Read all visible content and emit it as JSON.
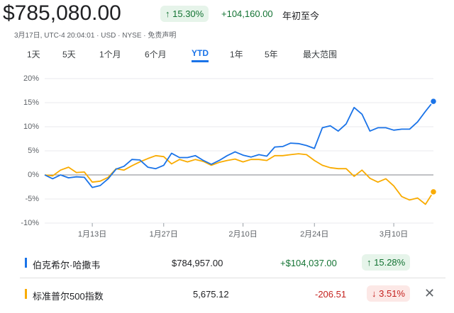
{
  "header": {
    "price": "$785,080.00",
    "change_pct": "15.30%",
    "change_abs": "+104,160.00",
    "period": "年初至今",
    "subline": "3月17日, UTC-4 20:04:01 · USD · NYSE · 免责声明"
  },
  "tabs": [
    "1天",
    "5天",
    "1个月",
    "6个月",
    "YTD",
    "1年",
    "5年",
    "最大范围"
  ],
  "active_tab": "YTD",
  "chart_data": {
    "type": "line",
    "x": [
      "1月2日",
      "1月3日",
      "1月6日",
      "1月7日",
      "1月8日",
      "1月10日",
      "1月13日",
      "1月14日",
      "1月15日",
      "1月16日",
      "1月17日",
      "1月21日",
      "1月22日",
      "1月23日",
      "1月24日",
      "1月27日",
      "1月28日",
      "1月29日",
      "1月30日",
      "1月31日",
      "2月3日",
      "2月4日",
      "2月5日",
      "2月6日",
      "2月7日",
      "2月10日",
      "2月11日",
      "2月12日",
      "2月13日",
      "2月14日",
      "2月18日",
      "2月19日",
      "2月20日",
      "2月21日",
      "2月24日",
      "2月25日",
      "2月26日",
      "2月27日",
      "2月28日",
      "3月3日",
      "3月4日",
      "3月5日",
      "3月6日",
      "3月7日",
      "3月10日",
      "3月11日",
      "3月12日",
      "3月13日",
      "3月14日",
      "3月17日"
    ],
    "xticks": [
      "1月13日",
      "1月27日",
      "2月10日",
      "2月24日",
      "3月10日"
    ],
    "ylim": [
      -10,
      20
    ],
    "yticks": [
      {
        "value": -10,
        "label": "-10%"
      },
      {
        "value": -5,
        "label": "-5%"
      },
      {
        "value": 0,
        "label": "0%"
      },
      {
        "value": 5,
        "label": "5%"
      },
      {
        "value": 10,
        "label": "10%"
      },
      {
        "value": 15,
        "label": "15%"
      },
      {
        "value": 20,
        "label": "20%"
      }
    ],
    "grid": true,
    "series": [
      {
        "name": "伯克希尔·哈撒韦",
        "color": "#1a73e8",
        "values": [
          0,
          -0.8,
          0,
          -0.6,
          -0.4,
          -0.5,
          -2.6,
          -2.2,
          -0.8,
          1.2,
          1.8,
          3.2,
          3.1,
          1.6,
          1.3,
          2,
          4.5,
          3.6,
          3.6,
          4,
          3,
          2.2,
          3,
          4,
          4.8,
          4.1,
          3.7,
          4.2,
          3.9,
          5.8,
          5.9,
          6.6,
          6.5,
          6.1,
          5.5,
          9.8,
          10.2,
          9.1,
          10.6,
          14,
          12.6,
          9.1,
          9.8,
          9.8,
          9.3,
          9.5,
          9.5,
          11,
          13.2,
          15.28
        ]
      },
      {
        "name": "标准普尔500指数",
        "color": "#f9ab00",
        "values": [
          0,
          -0.2,
          1,
          1.6,
          0.5,
          0.6,
          -1.5,
          -1.3,
          -0.5,
          1.3,
          1,
          1.9,
          2.7,
          3.4,
          4,
          3.8,
          2.3,
          3.2,
          2.7,
          3.2,
          2.8,
          2,
          2.6,
          3,
          3.3,
          2.7,
          3.2,
          3.2,
          3,
          4,
          4,
          4.2,
          4.4,
          4.2,
          3,
          2,
          1.5,
          1.3,
          1.3,
          -0.3,
          1,
          -0.7,
          -1.5,
          -0.8,
          -2.3,
          -4.5,
          -5.2,
          -4.8,
          -6.1,
          -3.51
        ]
      }
    ]
  },
  "comparison": [
    {
      "price": "$784,957.00",
      "change": "+$104,037.00",
      "pct": "15.28%"
    },
    {
      "price": "5,675.12",
      "change": "-206.51",
      "pct": "3.51%"
    }
  ]
}
